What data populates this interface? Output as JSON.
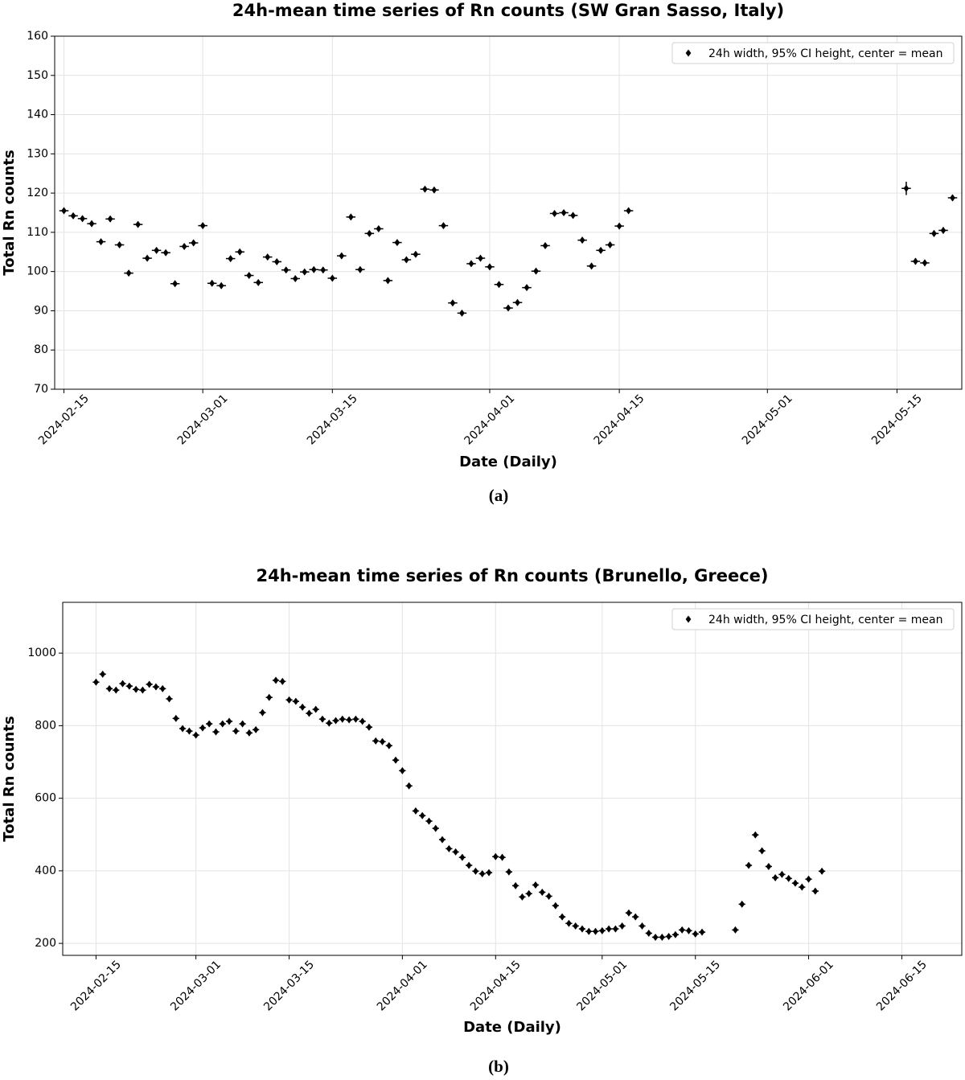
{
  "chart_data": [
    {
      "type": "scatter",
      "title": "24h-mean time series of Rn counts (SW Gran Sasso, Italy)",
      "x_label": "Date (Daily)",
      "y_label": "Total Rn counts",
      "caption": "(a)",
      "xlim": [
        "2024-02-14",
        "2024-05-22"
      ],
      "xticks": [
        "2024-02-15",
        "2024-03-01",
        "2024-03-15",
        "2024-04-01",
        "2024-04-15",
        "2024-05-01",
        "2024-05-15"
      ],
      "ylim": [
        70,
        160
      ],
      "yticks": [
        70,
        80,
        90,
        100,
        110,
        120,
        130,
        140,
        150,
        160
      ],
      "grid": true,
      "legend": "upper right",
      "series": [
        {
          "name": "24h width, 95% CI height, center = mean",
          "color": "#000000",
          "x": [
            "2024-02-15",
            "2024-02-16",
            "2024-02-17",
            "2024-02-18",
            "2024-02-19",
            "2024-02-20",
            "2024-02-21",
            "2024-02-22",
            "2024-02-23",
            "2024-02-24",
            "2024-02-25",
            "2024-02-26",
            "2024-02-27",
            "2024-02-28",
            "2024-02-29",
            "2024-03-01",
            "2024-03-02",
            "2024-03-03",
            "2024-03-04",
            "2024-03-05",
            "2024-03-06",
            "2024-03-07",
            "2024-03-08",
            "2024-03-09",
            "2024-03-10",
            "2024-03-11",
            "2024-03-12",
            "2024-03-13",
            "2024-03-14",
            "2024-03-15",
            "2024-03-16",
            "2024-03-17",
            "2024-03-18",
            "2024-03-19",
            "2024-03-20",
            "2024-03-21",
            "2024-03-22",
            "2024-03-23",
            "2024-03-24",
            "2024-03-25",
            "2024-03-26",
            "2024-03-27",
            "2024-03-28",
            "2024-03-29",
            "2024-03-30",
            "2024-03-31",
            "2024-04-01",
            "2024-04-02",
            "2024-04-03",
            "2024-04-04",
            "2024-04-05",
            "2024-04-06",
            "2024-04-07",
            "2024-04-08",
            "2024-04-09",
            "2024-04-10",
            "2024-04-11",
            "2024-04-12",
            "2024-04-13",
            "2024-04-14",
            "2024-04-15",
            "2024-04-16",
            "2024-05-16",
            "2024-05-17",
            "2024-05-18",
            "2024-05-19",
            "2024-05-20",
            "2024-05-21"
          ],
          "values": [
            115.5,
            114.2,
            113.5,
            112.2,
            107.6,
            113.4,
            106.8,
            99.6,
            112,
            103.4,
            105.4,
            104.8,
            96.9,
            106.4,
            107.3,
            111.7,
            97,
            96.4,
            103.3,
            105,
            99,
            97.2,
            103.7,
            102.5,
            100.4,
            98.2,
            99.9,
            100.5,
            100.4,
            98.3,
            104,
            113.9,
            100.5,
            109.7,
            110.9,
            97.7,
            107.4,
            103,
            104.4,
            121,
            120.8,
            111.7,
            92,
            89.4,
            102,
            103.4,
            101.2,
            96.7,
            90.7,
            92.1,
            95.9,
            100.1,
            106.6,
            114.8,
            115,
            114.3,
            108,
            101.4,
            105.4,
            106.8,
            111.6,
            115.5,
            121.2,
            102.6,
            102.2,
            109.7,
            110.5,
            118.8
          ],
          "errors": [
            0.7,
            0.7,
            0.7,
            0.7,
            0.7,
            0.7,
            0.7,
            0.7,
            0.7,
            0.7,
            0.7,
            0.7,
            0.7,
            0.7,
            0.7,
            0.7,
            0.7,
            0.7,
            0.7,
            0.7,
            0.7,
            0.7,
            0.7,
            0.7,
            0.7,
            0.7,
            0.7,
            0.7,
            0.7,
            0.7,
            0.7,
            0.7,
            0.7,
            0.7,
            0.7,
            0.7,
            0.7,
            0.7,
            0.7,
            0.7,
            0.7,
            0.7,
            0.7,
            0.7,
            0.7,
            0.7,
            0.7,
            0.7,
            0.7,
            0.7,
            0.7,
            0.7,
            0.7,
            0.7,
            0.7,
            0.7,
            0.7,
            0.7,
            0.7,
            0.7,
            0.7,
            0.7,
            1.7,
            0.8,
            0.8,
            0.8,
            0.8,
            0.8
          ]
        }
      ]
    },
    {
      "type": "scatter",
      "title": "24h-mean time series of Rn counts (Brunello, Greece)",
      "x_label": "Date (Daily)",
      "y_label": "Total Rn counts",
      "caption": "(b)",
      "xlim": [
        "2024-02-10",
        "2024-06-24"
      ],
      "xticks": [
        "2024-02-15",
        "2024-03-01",
        "2024-03-15",
        "2024-04-01",
        "2024-04-15",
        "2024-05-01",
        "2024-05-15",
        "2024-06-01",
        "2024-06-15"
      ],
      "ylim": [
        167,
        1140
      ],
      "yticks": [
        200,
        400,
        600,
        800,
        1000
      ],
      "grid": true,
      "legend": "upper right",
      "series": [
        {
          "name": "24h width, 95% CI height, center = mean",
          "color": "#000000",
          "x": [
            "2024-02-15",
            "2024-02-16",
            "2024-02-17",
            "2024-02-18",
            "2024-02-19",
            "2024-02-20",
            "2024-02-21",
            "2024-02-22",
            "2024-02-23",
            "2024-02-24",
            "2024-02-25",
            "2024-02-26",
            "2024-02-27",
            "2024-02-28",
            "2024-02-29",
            "2024-03-01",
            "2024-03-02",
            "2024-03-03",
            "2024-03-04",
            "2024-03-05",
            "2024-03-06",
            "2024-03-07",
            "2024-03-08",
            "2024-03-09",
            "2024-03-10",
            "2024-03-11",
            "2024-03-12",
            "2024-03-13",
            "2024-03-14",
            "2024-03-15",
            "2024-03-16",
            "2024-03-17",
            "2024-03-18",
            "2024-03-19",
            "2024-03-20",
            "2024-03-21",
            "2024-03-22",
            "2024-03-23",
            "2024-03-24",
            "2024-03-25",
            "2024-03-26",
            "2024-03-27",
            "2024-03-28",
            "2024-03-29",
            "2024-03-30",
            "2024-03-31",
            "2024-04-01",
            "2024-04-02",
            "2024-04-03",
            "2024-04-04",
            "2024-04-05",
            "2024-04-06",
            "2024-04-07",
            "2024-04-08",
            "2024-04-09",
            "2024-04-10",
            "2024-04-11",
            "2024-04-12",
            "2024-04-13",
            "2024-04-14",
            "2024-04-15",
            "2024-04-16",
            "2024-04-17",
            "2024-04-18",
            "2024-04-19",
            "2024-04-20",
            "2024-04-21",
            "2024-04-22",
            "2024-04-23",
            "2024-04-24",
            "2024-04-25",
            "2024-04-26",
            "2024-04-27",
            "2024-04-28",
            "2024-04-29",
            "2024-04-30",
            "2024-05-01",
            "2024-05-02",
            "2024-05-03",
            "2024-05-04",
            "2024-05-05",
            "2024-05-06",
            "2024-05-07",
            "2024-05-08",
            "2024-05-09",
            "2024-05-10",
            "2024-05-11",
            "2024-05-12",
            "2024-05-13",
            "2024-05-14",
            "2024-05-15",
            "2024-05-16",
            "2024-05-21",
            "2024-05-22",
            "2024-05-23",
            "2024-05-24",
            "2024-05-25",
            "2024-05-26",
            "2024-05-27",
            "2024-05-28",
            "2024-05-29",
            "2024-05-30",
            "2024-05-31",
            "2024-06-01",
            "2024-06-02",
            "2024-06-03"
          ],
          "values": [
            920,
            942,
            902,
            898,
            916,
            909,
            900,
            898,
            914,
            907,
            902,
            874,
            820,
            792,
            785,
            774,
            794,
            805,
            783,
            805,
            812,
            785,
            805,
            780,
            789,
            836,
            878,
            925,
            922,
            871,
            867,
            851,
            834,
            845,
            818,
            807,
            814,
            818,
            816,
            818,
            812,
            796,
            758,
            756,
            745,
            705,
            676,
            634,
            565,
            552,
            537,
            517,
            486,
            461,
            452,
            437,
            415,
            399,
            392,
            395,
            439,
            437,
            397,
            359,
            328,
            337,
            361,
            341,
            330,
            304,
            273,
            255,
            248,
            240,
            233,
            233,
            235,
            240,
            240,
            248,
            284,
            273,
            248,
            228,
            217,
            217,
            219,
            224,
            237,
            235,
            226,
            231,
            237,
            308,
            415,
            499,
            455,
            412,
            381,
            390,
            379,
            366,
            355,
            377,
            344,
            399
          ],
          "errors": [
            6,
            6,
            6,
            6,
            6,
            6,
            6,
            6,
            6,
            6,
            6,
            6,
            6,
            6,
            6,
            6,
            6,
            6,
            6,
            6,
            6,
            6,
            6,
            6,
            6,
            6,
            6,
            6,
            6,
            6,
            6,
            6,
            6,
            6,
            6,
            6,
            6,
            6,
            6,
            6,
            6,
            6,
            6,
            6,
            6,
            6,
            5,
            5,
            5,
            5,
            5,
            5,
            5,
            5,
            5,
            5,
            5,
            5,
            5,
            5,
            5,
            5,
            5,
            5,
            5,
            5,
            5,
            5,
            5,
            5,
            5,
            5,
            5,
            5,
            5,
            5,
            4,
            4,
            4,
            4,
            4,
            4,
            4,
            4,
            4,
            4,
            4,
            4,
            4,
            4,
            4,
            4,
            4,
            4,
            5,
            5,
            5,
            5,
            5,
            5,
            5,
            5,
            5,
            5,
            5,
            5
          ]
        }
      ]
    }
  ]
}
